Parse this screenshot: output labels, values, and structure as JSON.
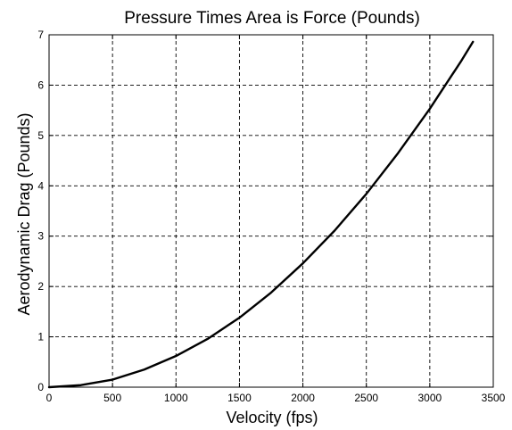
{
  "chart_data": {
    "type": "line",
    "title": "Pressure Times Area is Force (Pounds)",
    "xlabel": "Velocity (fps)",
    "ylabel": "Aerodynamic Drag (Pounds)",
    "xlim": [
      0,
      3500
    ],
    "ylim": [
      0,
      7
    ],
    "grid": true,
    "grid_style": "dashed",
    "x_ticks": [
      0,
      500,
      1000,
      1500,
      2000,
      2500,
      3000,
      3500
    ],
    "y_ticks": [
      0,
      1,
      2,
      3,
      4,
      5,
      6,
      7
    ],
    "x_tick_labels": [
      "0",
      "500",
      "1000",
      "1500",
      "2000",
      "2500",
      "3000",
      "3500"
    ],
    "y_tick_labels": [
      "0",
      "1",
      "2",
      "3",
      "4",
      "5",
      "6",
      "7"
    ],
    "line_color": "#000000",
    "series": [
      {
        "x": [
          0,
          250,
          500,
          750,
          1000,
          1250,
          1500,
          1750,
          2000,
          2250,
          2500,
          2750,
          3000,
          3250,
          3340
        ],
        "y": [
          0,
          0.04,
          0.15,
          0.35,
          0.62,
          0.96,
          1.38,
          1.88,
          2.46,
          3.11,
          3.84,
          4.65,
          5.53,
          6.49,
          6.86
        ]
      }
    ]
  }
}
